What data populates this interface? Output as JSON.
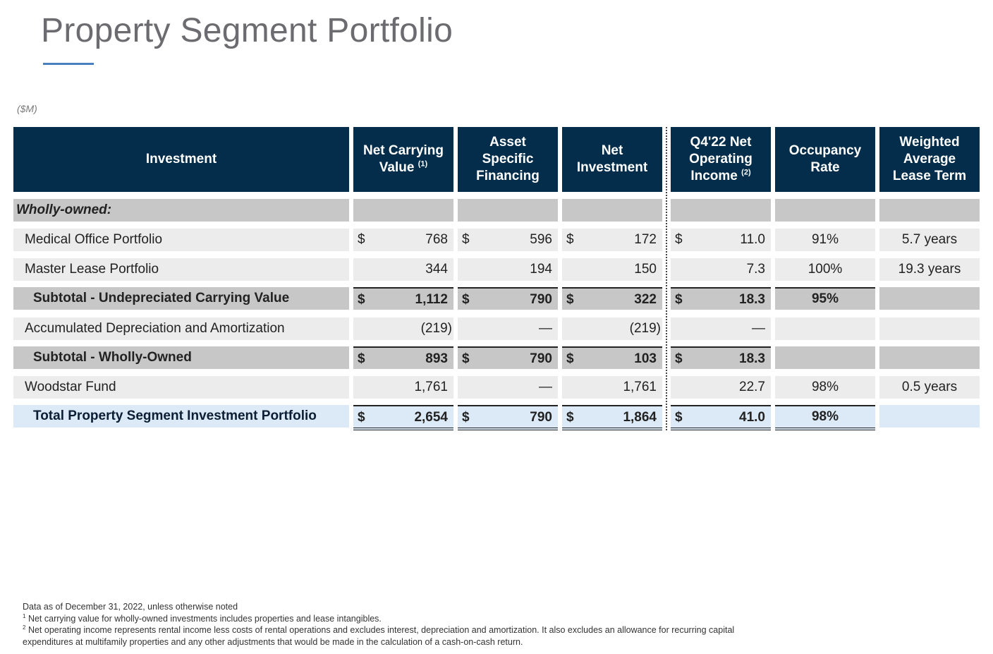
{
  "title": "Property Segment Portfolio",
  "units": "($M)",
  "headers": {
    "investment": "Investment",
    "ncv_line1": "Net Carrying",
    "ncv_line2": "Value",
    "ncv_sup": "(1)",
    "asf_line1": "Asset",
    "asf_line2": "Specific",
    "asf_line3": "Financing",
    "ni_line1": "Net",
    "ni_line2": "Investment",
    "noi_line1": "Q4'22 Net",
    "noi_line2": "Operating",
    "noi_line3": "Income",
    "noi_sup": "(2)",
    "occ_line1": "Occupancy",
    "occ_line2": "Rate",
    "walt_line1": "Weighted",
    "walt_line2": "Average",
    "walt_line3": "Lease Term"
  },
  "section_label": "Wholly-owned:",
  "currency_symbol": "$",
  "rows": {
    "medical": {
      "label": "Medical Office Portfolio",
      "ncv": "768",
      "asf": "596",
      "ni": "172",
      "noi": "11.0",
      "occ": "91%",
      "walt": "5.7 years"
    },
    "master": {
      "label": "Master Lease Portfolio",
      "ncv": "344",
      "asf": "194",
      "ni": "150",
      "noi": "7.3",
      "occ": "100%",
      "walt": "19.3 years"
    },
    "subtotal_undep": {
      "label": "Subtotal - Undepreciated Carrying Value",
      "ncv": "1,112",
      "asf": "790",
      "ni": "322",
      "noi": "18.3",
      "occ": "95%"
    },
    "accum": {
      "label": "Accumulated Depreciation and Amortization",
      "ncv": "(219)",
      "asf": "—",
      "ni": "(219)",
      "noi": "—"
    },
    "subtotal_wo": {
      "label": "Subtotal - Wholly-Owned",
      "ncv": "893",
      "asf": "790",
      "ni": "103",
      "noi": "18.3"
    },
    "woodstar": {
      "label": "Woodstar Fund",
      "ncv": "1,761",
      "asf": "—",
      "ni": "1,761",
      "noi": "22.7",
      "occ": "98%",
      "walt": "0.5 years"
    },
    "total": {
      "label": "Total Property Segment Investment Portfolio",
      "ncv": "2,654",
      "asf": "790",
      "ni": "1,864",
      "noi": "41.0",
      "occ": "98%"
    }
  },
  "footnotes": {
    "data_as_of": "Data as of December 31, 2022, unless otherwise noted",
    "fn1_mark": "1",
    "fn1": "Net carrying value for wholly-owned investments includes properties and lease intangibles.",
    "fn2_mark": "2",
    "fn2_line1": "Net operating income represents rental income less costs of rental operations and excludes interest, depreciation and amortization. It also excludes an allowance for recurring capital",
    "fn2_line2": "expenditures at multifamily properties and any other adjustments that would be made in the calculation of a cash-on-cash return."
  },
  "colors": {
    "header_bg": "#032d4a",
    "subtotal_bg": "#c7c7c7",
    "row_bg": "#ececec",
    "total_bg": "#dce9f6",
    "title_rule": "#4a7fc0"
  }
}
